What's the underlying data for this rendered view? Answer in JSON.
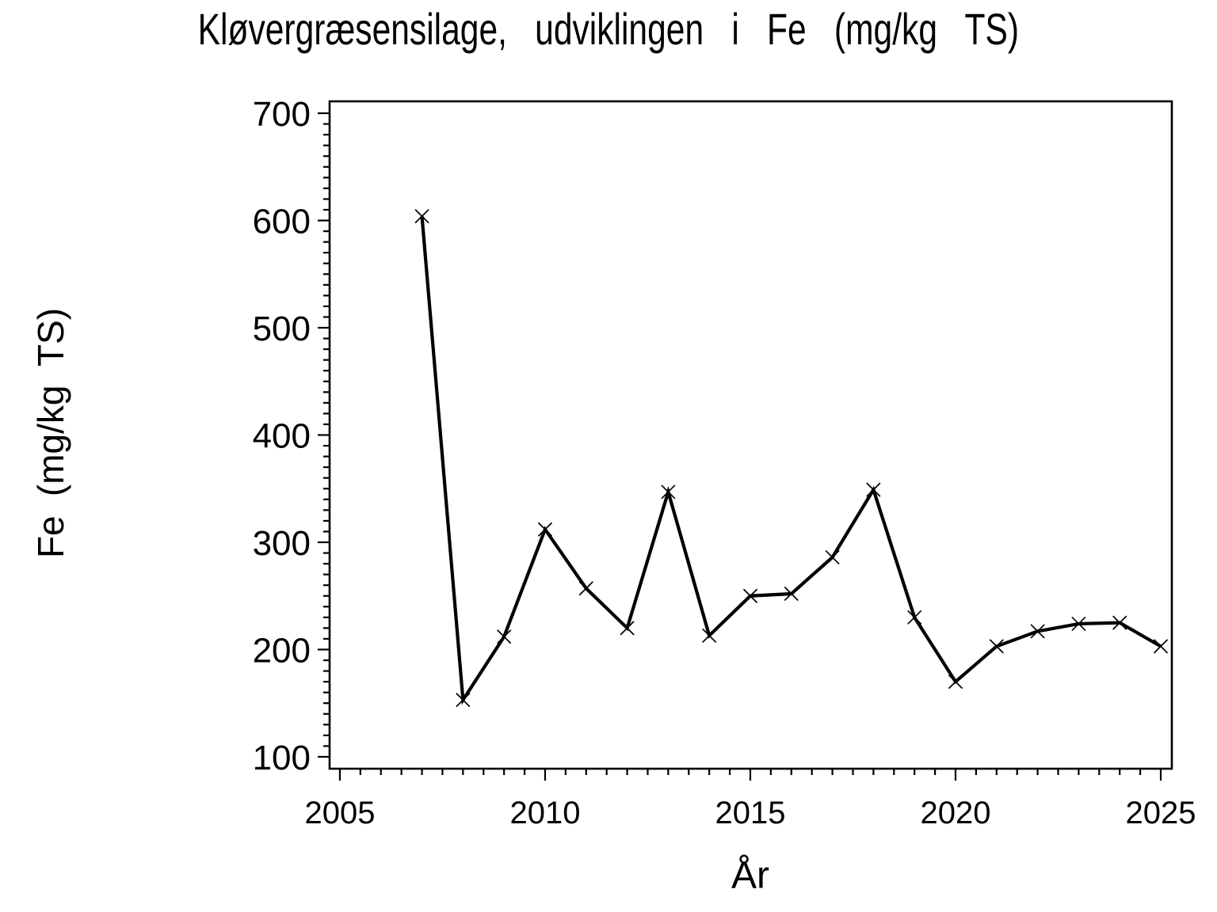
{
  "chart_data": {
    "type": "line",
    "title": "Kløvergræsensilage, udviklingen i Fe (mg/kg TS)",
    "xlabel": "År",
    "ylabel": "Fe (mg/kg TS)",
    "series": [
      {
        "name": "Fe (mg/kg TS)",
        "x": [
          2007,
          2008,
          2009,
          2010,
          2011,
          2012,
          2013,
          2014,
          2015,
          2016,
          2017,
          2018,
          2019,
          2020,
          2021,
          2022,
          2023,
          2024,
          2025
        ],
        "values": [
          604,
          153,
          212,
          312,
          257,
          220,
          347,
          213,
          250,
          252,
          286,
          349,
          230,
          170,
          203,
          217,
          224,
          225,
          203
        ]
      }
    ],
    "marker": "x",
    "line_color": "#000000",
    "marker_color": "#000000",
    "background_color": "#ffffff",
    "grid": false,
    "legend": false,
    "xlim": [
      2004.75,
      2025.27
    ],
    "ylim": [
      88.9,
      711.1
    ],
    "x_major_ticks": [
      2005,
      2010,
      2015,
      2020,
      2025
    ],
    "x_tick_labels": [
      "2005",
      "2010",
      "2015",
      "2020",
      "2025"
    ],
    "x_minor_tick_range": [
      2005,
      2025
    ],
    "x_minor_step": 0.5,
    "y_major_ticks": [
      100,
      200,
      300,
      400,
      500,
      600,
      700
    ],
    "y_tick_labels": [
      "100",
      "200",
      "300",
      "400",
      "500",
      "600",
      "700"
    ],
    "y_minor_tick_range": [
      100,
      700
    ],
    "y_minor_step": 10
  }
}
